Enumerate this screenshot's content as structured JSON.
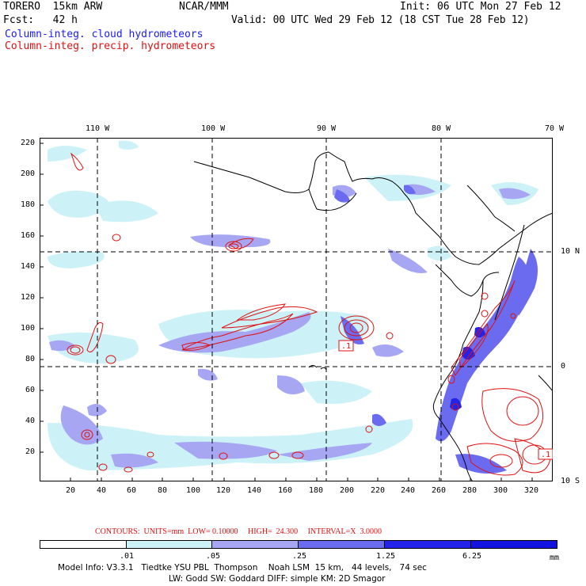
{
  "header": {
    "model": "TORERO  15km ARW",
    "org": "NCAR/MMM",
    "init": "Init: 06 UTC Mon 27 Feb 12",
    "fcst": "Fcst:   42 h",
    "valid": "Valid: 00 UTC Wed 29 Feb 12 (18 CST Tue 28 Feb 12)",
    "field1": "Column-integ. cloud hydrometeors",
    "field2": "Column-integ. precip. hydrometeors"
  },
  "top_lon_labels": [
    "110 W",
    "100 W",
    "90 W",
    "80 W",
    "70 W"
  ],
  "right_lat_labels": [
    "10 N",
    "0",
    "10 S"
  ],
  "y_ticks": [
    "220",
    "200",
    "180",
    "160",
    "140",
    "120",
    "100",
    "80",
    "60",
    "40",
    "20"
  ],
  "x_ticks": [
    "20",
    "40",
    "60",
    "80",
    "100",
    "120",
    "140",
    "160",
    "180",
    "200",
    "220",
    "240",
    "260",
    "280",
    "300",
    "320"
  ],
  "contour_labels": [
    ".1",
    ".1"
  ],
  "contours_line": "CONTOURS:  UNITS=mm  LOW= 0.10000     HIGH=  24.300     INTERVAL=X  3.0000",
  "colorbar": {
    "labels": [
      ".01",
      ".05",
      ".25",
      "1.25",
      "6.25"
    ],
    "unit": "mm",
    "colors": [
      "#ffffff",
      "#ccf2f8",
      "#a6a6f2",
      "#6b6bf0",
      "#2222e8"
    ]
  },
  "model_info": {
    "line1": "Model Info: V3.3.1   Tiedtke YSU PBL  Thompson    Noah LSM  15 km,   44 levels,   74 sec",
    "line2": "LW: Godd SW: Goddard DIFF: simple KM: 2D Smagor"
  }
}
